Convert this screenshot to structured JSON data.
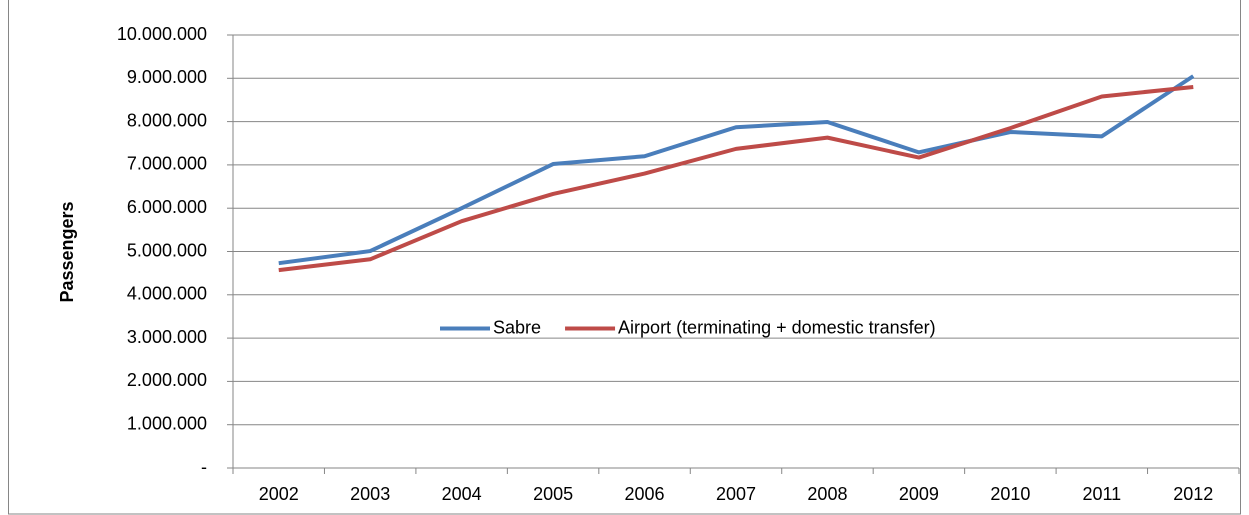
{
  "chart_data": {
    "type": "line",
    "y_label": "Passengers",
    "categories": [
      "2002",
      "2003",
      "2004",
      "2005",
      "2006",
      "2007",
      "2008",
      "2009",
      "2010",
      "2011",
      "2012"
    ],
    "series": [
      {
        "name": "Sabre",
        "color": "#4a7ebb",
        "values": [
          4730000,
          5010000,
          6000000,
          7020000,
          7200000,
          7870000,
          7990000,
          7290000,
          7760000,
          7660000,
          9050000
        ]
      },
      {
        "name": "Airport (terminating + domestic transfer)",
        "color": "#be4b48",
        "values": [
          4570000,
          4820000,
          5700000,
          6330000,
          6800000,
          7370000,
          7630000,
          7170000,
          7850000,
          8580000,
          8800000
        ]
      }
    ],
    "ylim": [
      0,
      10000000
    ],
    "yticks": [
      {
        "value": 0,
        "label": "-"
      },
      {
        "value": 1000000,
        "label": "1.000.000"
      },
      {
        "value": 2000000,
        "label": "2.000.000"
      },
      {
        "value": 3000000,
        "label": "3.000.000"
      },
      {
        "value": 4000000,
        "label": "4.000.000"
      },
      {
        "value": 5000000,
        "label": "5.000.000"
      },
      {
        "value": 6000000,
        "label": "6.000.000"
      },
      {
        "value": 7000000,
        "label": "7.000.000"
      },
      {
        "value": 8000000,
        "label": "8.000.000"
      },
      {
        "value": 9000000,
        "label": "9.000.000"
      },
      {
        "value": 10000000,
        "label": "10.000.000"
      }
    ],
    "grid": true,
    "legend": "center"
  }
}
